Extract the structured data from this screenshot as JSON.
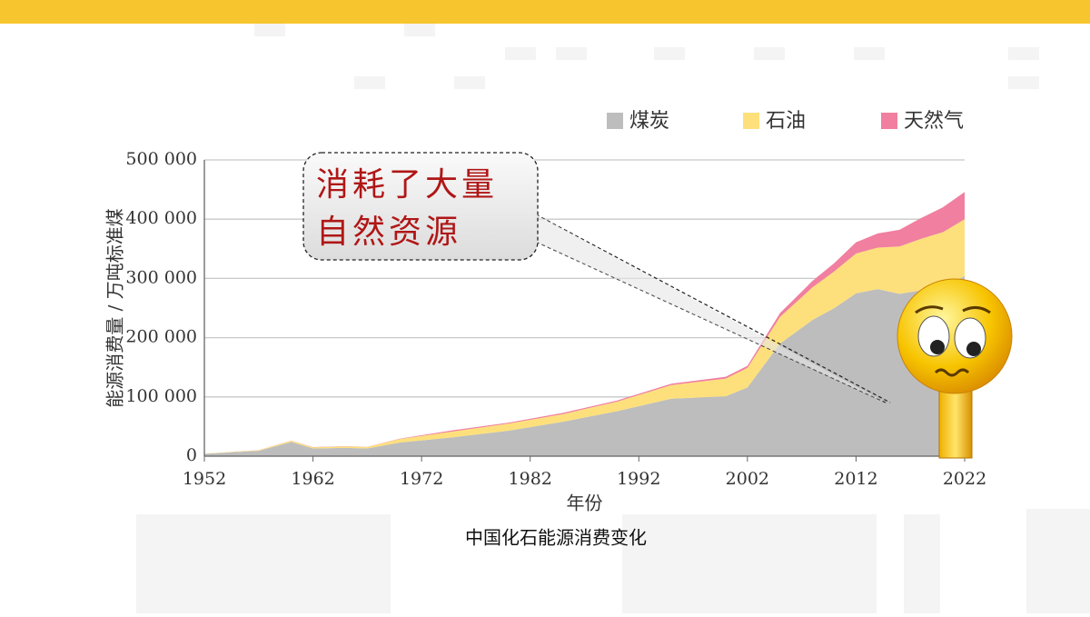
{
  "chart_data": {
    "type": "stacked-area",
    "x": [
      1952,
      1957,
      1960,
      1962,
      1965,
      1967,
      1970,
      1975,
      1980,
      1985,
      1990,
      1995,
      2000,
      2002,
      2005,
      2008,
      2010,
      2012,
      2014,
      2016,
      2018,
      2020,
      2022
    ],
    "series": [
      {
        "name": "煤炭",
        "color": "#bdbdbd",
        "values": [
          4000,
          9000,
          24000,
          13000,
          14000,
          13000,
          23000,
          32000,
          43000,
          58000,
          76000,
          97000,
          101000,
          116000,
          190000,
          230000,
          250000,
          275000,
          282000,
          274000,
          280000,
          284000,
          304000
        ]
      },
      {
        "name": "石油",
        "color": "#fde07c",
        "values": [
          500,
          1000,
          2000,
          2000,
          2500,
          2500,
          6000,
          10000,
          12000,
          13000,
          16000,
          23000,
          30000,
          33000,
          45000,
          55000,
          62000,
          67000,
          70000,
          80000,
          87000,
          94000,
          96000
        ]
      },
      {
        "name": "天然气",
        "color": "#f07fa0",
        "values": [
          0,
          100,
          300,
          300,
          300,
          300,
          500,
          2000,
          1500,
          2000,
          2000,
          2300,
          3000,
          3500,
          6500,
          11000,
          14000,
          19000,
          24000,
          28000,
          35000,
          42000,
          46000
        ]
      }
    ],
    "xlim": [
      1952,
      2022
    ],
    "xticks": [
      1952,
      1962,
      1972,
      1982,
      1992,
      2002,
      2012,
      2022
    ],
    "ylim": [
      0,
      500000
    ],
    "yticks": [
      0,
      {
        "value": 100000,
        "label": "100 000"
      },
      {
        "value": 200000,
        "label": "200 000"
      },
      {
        "value": 300000,
        "label": "300 000"
      },
      {
        "value": 400000,
        "label": "400 000"
      },
      {
        "value": 500000,
        "label": "500 000"
      }
    ],
    "grid": true,
    "legend": "top-right",
    "xlabel": "年份",
    "ylabel": "能源消费量 / 万吨标准煤",
    "caption": "中国化石能源消费变化",
    "callout": [
      "消耗了大量",
      "自然资源"
    ]
  }
}
